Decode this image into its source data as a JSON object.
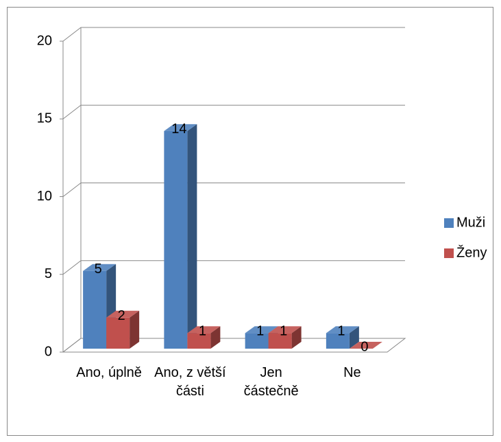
{
  "chart_data": {
    "type": "bar3d",
    "categories": [
      "Ano, úplně",
      "Ano, z větší části",
      "Jen částečně",
      "Ne"
    ],
    "series": [
      {
        "name": "Muži",
        "color": "#4f81bd",
        "values": [
          5,
          14,
          1,
          1
        ]
      },
      {
        "name": "Ženy",
        "color": "#c0504d",
        "values": [
          2,
          1,
          1,
          0
        ]
      }
    ],
    "ylim": [
      0,
      20
    ],
    "yticks": [
      0,
      5,
      10,
      15,
      20
    ],
    "grid": true,
    "legend": "right"
  }
}
